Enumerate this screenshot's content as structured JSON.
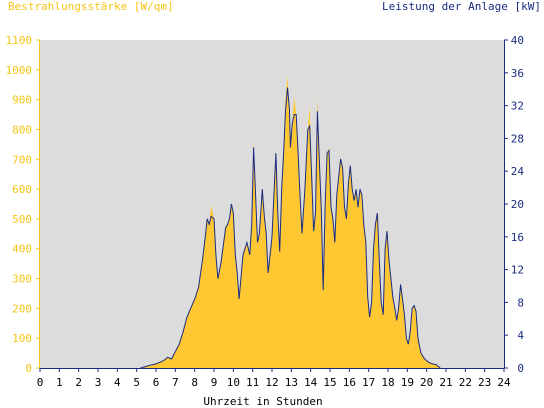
{
  "chart_data": {
    "type": "area",
    "left_title": "Bestrahlungsstärke [W/qm]",
    "right_title": "Leistung der Anlage [kW]",
    "xlabel": "Uhrzeit in Stunden",
    "xlim": [
      0,
      24
    ],
    "x_ticks": [
      "0",
      "1",
      "2",
      "3",
      "4",
      "5",
      "6",
      "7",
      "8",
      "9",
      "10",
      "11",
      "12",
      "13",
      "14",
      "15",
      "16",
      "17",
      "18",
      "19",
      "20",
      "21",
      "22",
      "23",
      "24"
    ],
    "left_axis": {
      "ylim": [
        0,
        1100
      ],
      "ticks": [
        "0",
        "100",
        "200",
        "300",
        "400",
        "500",
        "600",
        "700",
        "800",
        "900",
        "1000",
        "1100"
      ],
      "color": "#F5C518"
    },
    "right_axis": {
      "ylim": [
        0,
        40
      ],
      "ticks": [
        "0",
        "4",
        "8",
        "12",
        "16",
        "20",
        "24",
        "28",
        "32",
        "36",
        "40"
      ],
      "color": "#1A2C80"
    },
    "series": [
      {
        "name": "Bestrahlungsstärke [W/qm]",
        "axis": "left",
        "color": "#FFC832",
        "x": [
          5.2,
          5.5,
          5.8,
          6.0,
          6.2,
          6.4,
          6.6,
          6.8,
          7.0,
          7.2,
          7.4,
          7.6,
          7.8,
          8.0,
          8.2,
          8.4,
          8.55,
          8.65,
          8.75,
          8.85,
          9.0,
          9.1,
          9.2,
          9.35,
          9.5,
          9.6,
          9.7,
          9.8,
          9.9,
          10.0,
          10.1,
          10.2,
          10.3,
          10.5,
          10.7,
          10.85,
          10.95,
          11.05,
          11.15,
          11.25,
          11.35,
          11.5,
          11.6,
          11.7,
          11.8,
          11.9,
          12.0,
          12.1,
          12.2,
          12.3,
          12.4,
          12.5,
          12.6,
          12.7,
          12.8,
          12.9,
          12.95,
          13.05,
          13.15,
          13.25,
          13.35,
          13.45,
          13.55,
          13.7,
          13.85,
          13.95,
          14.05,
          14.15,
          14.25,
          14.35,
          14.45,
          14.55,
          14.65,
          14.75,
          14.85,
          14.95,
          15.05,
          15.15,
          15.25,
          15.35,
          15.45,
          15.55,
          15.65,
          15.75,
          15.85,
          15.95,
          16.05,
          16.15,
          16.25,
          16.35,
          16.45,
          16.55,
          16.65,
          16.75,
          16.85,
          16.95,
          17.05,
          17.15,
          17.25,
          17.35,
          17.45,
          17.55,
          17.65,
          17.75,
          17.85,
          17.95,
          18.05,
          18.15,
          18.25,
          18.35,
          18.45,
          18.55,
          18.65,
          18.75,
          18.85,
          18.95,
          19.05,
          19.15,
          19.25,
          19.35,
          19.45,
          19.55,
          19.7,
          19.9,
          20.1,
          20.3,
          20.5,
          20.7
        ],
        "values": [
          0,
          5,
          12,
          15,
          20,
          25,
          35,
          30,
          55,
          80,
          120,
          170,
          200,
          230,
          270,
          360,
          440,
          500,
          480,
          545,
          500,
          380,
          300,
          350,
          420,
          470,
          480,
          500,
          550,
          520,
          380,
          320,
          230,
          380,
          420,
          380,
          480,
          760,
          580,
          420,
          450,
          600,
          510,
          450,
          320,
          380,
          440,
          580,
          720,
          520,
          390,
          600,
          720,
          900,
          980,
          870,
          740,
          820,
          910,
          850,
          720,
          580,
          450,
          600,
          800,
          880,
          650,
          460,
          520,
          910,
          690,
          530,
          260,
          550,
          720,
          740,
          540,
          500,
          420,
          580,
          640,
          700,
          670,
          540,
          500,
          620,
          680,
          600,
          560,
          600,
          540,
          600,
          580,
          480,
          420,
          240,
          170,
          220,
          400,
          480,
          520,
          360,
          220,
          180,
          400,
          460,
          360,
          300,
          240,
          200,
          160,
          200,
          280,
          230,
          180,
          100,
          80,
          120,
          200,
          210,
          190,
          100,
          50,
          30,
          20,
          15,
          10,
          0
        ]
      },
      {
        "name": "Leistung der Anlage [kW]",
        "axis": "right",
        "color": "#1A2C80",
        "x": [
          5.2,
          5.5,
          5.8,
          6.0,
          6.2,
          6.4,
          6.6,
          6.8,
          7.0,
          7.2,
          7.4,
          7.6,
          7.8,
          8.0,
          8.2,
          8.4,
          8.55,
          8.65,
          8.75,
          8.85,
          9.0,
          9.1,
          9.2,
          9.35,
          9.5,
          9.6,
          9.7,
          9.8,
          9.9,
          10.0,
          10.1,
          10.2,
          10.3,
          10.5,
          10.7,
          10.85,
          10.95,
          11.05,
          11.15,
          11.25,
          11.35,
          11.5,
          11.6,
          11.7,
          11.8,
          11.9,
          12.0,
          12.1,
          12.2,
          12.3,
          12.4,
          12.5,
          12.6,
          12.7,
          12.8,
          12.9,
          12.95,
          13.05,
          13.15,
          13.25,
          13.35,
          13.45,
          13.55,
          13.7,
          13.85,
          13.95,
          14.05,
          14.15,
          14.25,
          14.35,
          14.45,
          14.55,
          14.65,
          14.75,
          14.85,
          14.95,
          15.05,
          15.15,
          15.25,
          15.35,
          15.45,
          15.55,
          15.65,
          15.75,
          15.85,
          15.95,
          16.05,
          16.15,
          16.25,
          16.35,
          16.45,
          16.55,
          16.65,
          16.75,
          16.85,
          16.95,
          17.05,
          17.15,
          17.25,
          17.35,
          17.45,
          17.55,
          17.65,
          17.75,
          17.85,
          17.95,
          18.05,
          18.15,
          18.25,
          18.35,
          18.45,
          18.55,
          18.65,
          18.75,
          18.85,
          18.95,
          19.05,
          19.15,
          19.25,
          19.35,
          19.45,
          19.55,
          19.7,
          19.9,
          20.1,
          20.3,
          20.5,
          20.7
        ],
        "values": [
          0,
          0.2,
          0.4,
          0.5,
          0.7,
          0.9,
          1.3,
          1.1,
          2.0,
          2.9,
          4.4,
          6.2,
          7.3,
          8.4,
          9.8,
          13.1,
          16.0,
          18.2,
          17.5,
          18.5,
          18.2,
          13.8,
          10.9,
          12.7,
          15.3,
          17.1,
          17.5,
          18.2,
          20.0,
          18.9,
          13.8,
          11.6,
          8.4,
          13.8,
          15.3,
          13.8,
          17.5,
          26.9,
          21.1,
          15.3,
          16.4,
          21.8,
          18.5,
          16.4,
          11.6,
          13.8,
          16.0,
          21.1,
          26.2,
          18.9,
          14.2,
          21.8,
          26.2,
          31.3,
          34.2,
          31.6,
          26.9,
          29.8,
          30.9,
          30.9,
          26.2,
          21.1,
          16.4,
          21.8,
          29.1,
          29.5,
          23.6,
          16.7,
          18.9,
          31.3,
          25.1,
          19.3,
          9.5,
          20.0,
          26.2,
          26.5,
          19.6,
          18.2,
          15.3,
          21.1,
          23.3,
          25.5,
          24.4,
          19.6,
          18.2,
          22.5,
          24.7,
          21.8,
          20.4,
          21.8,
          19.6,
          21.8,
          21.1,
          17.5,
          15.3,
          8.7,
          6.2,
          8.0,
          14.5,
          17.5,
          18.9,
          13.1,
          8.0,
          6.5,
          14.5,
          16.7,
          13.1,
          10.9,
          8.7,
          7.3,
          5.8,
          7.3,
          10.2,
          8.4,
          6.5,
          3.6,
          2.9,
          4.4,
          7.3,
          7.6,
          6.9,
          3.6,
          1.8,
          1.1,
          0.7,
          0.5,
          0.4,
          0
        ]
      }
    ],
    "grid": false,
    "plot_background": "#DCDCDC"
  }
}
